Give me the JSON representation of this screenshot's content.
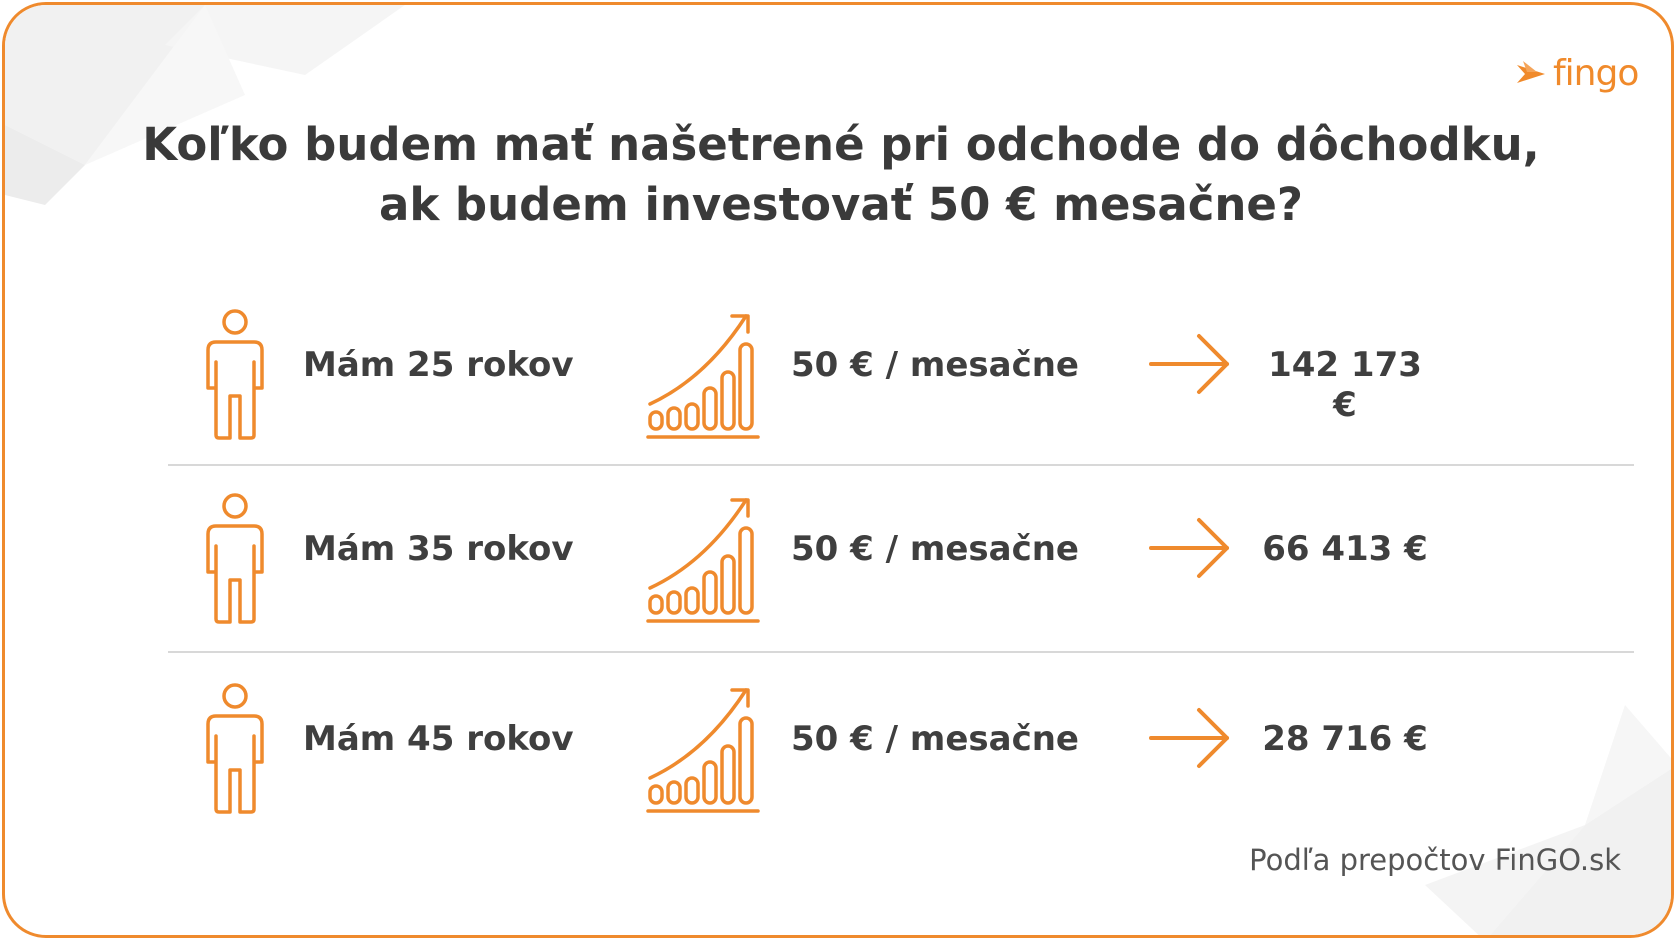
{
  "logo": {
    "text": "fingo",
    "icon": "fingo-bird-icon",
    "color": "#f08a2b"
  },
  "title": {
    "line1": "Koľko budem mať našetrené pri odchode do dôchodku,",
    "line2": "ak budem investovať 50 € mesačne?"
  },
  "rows": [
    {
      "age": "Mám 25 rokov",
      "amount": "50 € / mesačne",
      "result": "142 173 €"
    },
    {
      "age": "Mám 35 rokov",
      "amount": "50 € / mesačne",
      "result": "66 413 €"
    },
    {
      "age": "Mám 45 rokov",
      "amount": "50 € / mesačne",
      "result": "28 716 €"
    }
  ],
  "icons": {
    "person": "person-icon",
    "growth": "growth-chart-icon",
    "arrow": "arrow-right-icon"
  },
  "colors": {
    "accent": "#ef8a2d",
    "text": "#3f3f3f",
    "divider": "#d8d8d8"
  },
  "source": "Podľa prepočtov FinGO.sk"
}
